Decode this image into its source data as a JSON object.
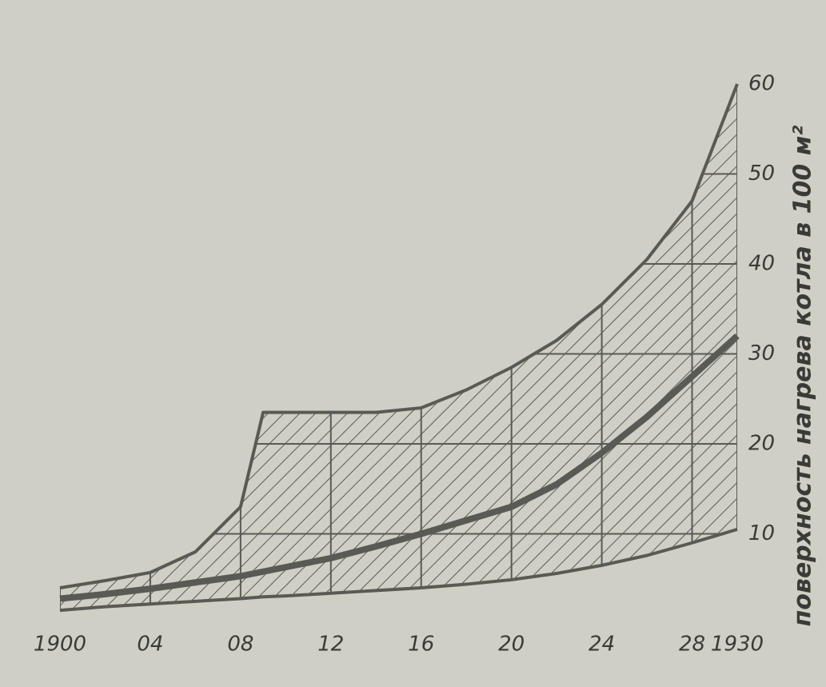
{
  "chart_data": {
    "type": "band",
    "y_label": "поверхность нагрева котла в 100 м²",
    "x": [
      1900,
      1902,
      1904,
      1906,
      1908,
      1909,
      1910,
      1912,
      1914,
      1916,
      1918,
      1920,
      1922,
      1924,
      1926,
      1928,
      1930
    ],
    "series": [
      {
        "color": "#5a5a55",
        "values": [
          4,
          4.8,
          5.7,
          8,
          13,
          23.5,
          23.5,
          23.5,
          23.5,
          24,
          26,
          28.5,
          31.5,
          35.5,
          40.5,
          47,
          60
        ]
      },
      {
        "color": "#5a5a55",
        "values": [
          2.8,
          3.3,
          3.9,
          4.6,
          5.3,
          5.8,
          6.3,
          7.3,
          8.6,
          10,
          11.5,
          13,
          15.5,
          19,
          23,
          27.5,
          32
        ]
      },
      {
        "color": "#5a5a55",
        "values": [
          1.5,
          1.9,
          2.2,
          2.5,
          2.8,
          3,
          3.1,
          3.4,
          3.7,
          4,
          4.4,
          4.9,
          5.6,
          6.5,
          7.6,
          9,
          10.5
        ]
      }
    ],
    "xlim": [
      1900,
      1930
    ],
    "ylim": [
      0,
      60
    ],
    "xticks": [
      1900,
      {
        "value": 1904,
        "label": "04"
      },
      {
        "value": 1908,
        "label": "08"
      },
      {
        "value": 1912,
        "label": "12"
      },
      {
        "value": 1916,
        "label": "16"
      },
      {
        "value": 1920,
        "label": "20"
      },
      {
        "value": 1924,
        "label": "24"
      },
      {
        "value": 1928,
        "label": "28"
      },
      1930
    ],
    "yticks": [
      10,
      20,
      30,
      40,
      50,
      60
    ],
    "grid": true
  }
}
